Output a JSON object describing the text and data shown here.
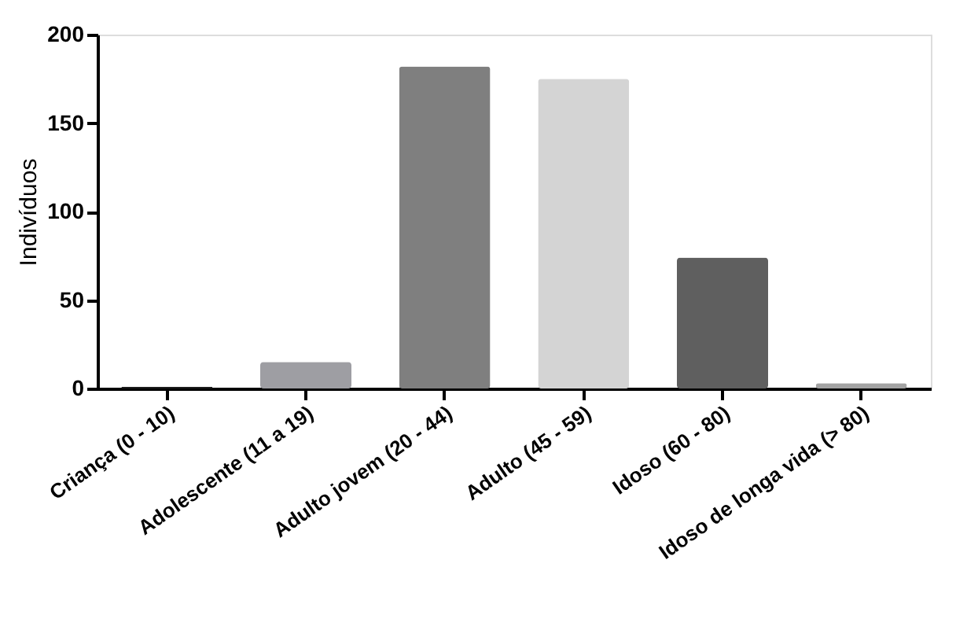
{
  "chart_data": {
    "type": "bar",
    "ylabel": "Indivíduos",
    "categories": [
      "Criança (0 - 10)",
      "Adolescente (11 a 19)",
      "Adulto jovem (20 - 44)",
      "Adulto (45 - 59)",
      "Idoso (60 - 80)",
      "Idoso de longa vida (> 80)"
    ],
    "values": [
      1,
      15,
      182,
      175,
      74,
      3
    ],
    "colors": [
      "#1a1a1a",
      "#9e9ea3",
      "#7f7f7f",
      "#d4d4d4",
      "#5f5f5f",
      "#a3a3a3"
    ],
    "ylim": [
      0,
      200
    ],
    "yticks": [
      0,
      50,
      100,
      150,
      200
    ],
    "grid": false
  }
}
